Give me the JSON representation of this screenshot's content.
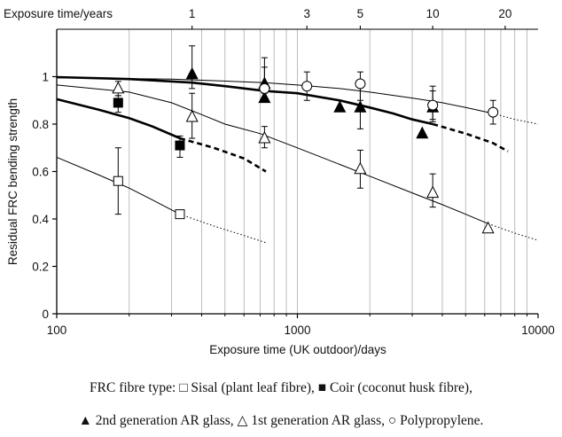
{
  "chart_data": {
    "type": "scatter",
    "title": "",
    "xlabel": "Exposure time (UK outdoor)/days",
    "ylabel": "Residual FRC bending strength",
    "top_axis_label": "Exposure time/years",
    "x_scale": "log",
    "xlim": [
      100,
      10000
    ],
    "ylim": [
      0,
      1.2
    ],
    "x_ticks": [
      100,
      1000,
      10000
    ],
    "x_tick_labels": [
      "100",
      "1000",
      "10000"
    ],
    "y_ticks": [
      0,
      0.2,
      0.4,
      0.6,
      0.8,
      1
    ],
    "y_tick_labels": [
      "0",
      "0.2",
      "0.4",
      "0.6",
      "0.8",
      "1"
    ],
    "top_ticks": [
      {
        "label": "1",
        "days": 365
      },
      {
        "label": "3",
        "days": 1095
      },
      {
        "label": "5",
        "days": 1825
      },
      {
        "label": "10",
        "days": 3650
      },
      {
        "label": "20",
        "days": 7300
      }
    ],
    "vertical_grid": true,
    "horizontal_grid": false,
    "series": [
      {
        "marker": "open-square",
        "points": [
          {
            "x": 180,
            "y": 0.56,
            "err": [
              0.42,
              0.7
            ]
          },
          {
            "x": 325,
            "y": 0.42
          }
        ],
        "trend_solid": [
          [
            100,
            0.66
          ],
          [
            150,
            0.585
          ],
          [
            200,
            0.53
          ],
          [
            250,
            0.48
          ],
          [
            325,
            0.42
          ]
        ],
        "trend_dotted": [
          [
            325,
            0.42
          ],
          [
            450,
            0.37
          ],
          [
            600,
            0.33
          ],
          [
            740,
            0.3
          ]
        ]
      },
      {
        "marker": "filled-square",
        "points": [
          {
            "x": 180,
            "y": 0.89,
            "err": [
              0.85,
              0.92
            ]
          },
          {
            "x": 325,
            "y": 0.71,
            "err": [
              0.66,
              0.75
            ]
          }
        ],
        "trend_solid": [
          [
            100,
            0.905
          ],
          [
            150,
            0.86
          ],
          [
            200,
            0.825
          ],
          [
            250,
            0.79
          ],
          [
            325,
            0.74
          ]
        ],
        "trend_dashed": [
          [
            325,
            0.74
          ],
          [
            450,
            0.7
          ],
          [
            600,
            0.655
          ],
          [
            740,
            0.6
          ]
        ]
      },
      {
        "marker": "open-triangle",
        "points": [
          {
            "x": 180,
            "y": 0.95,
            "err": [
              0.92,
              0.98
            ]
          },
          {
            "x": 365,
            "y": 0.83,
            "err": [
              0.74,
              0.93
            ]
          },
          {
            "x": 730,
            "y": 0.74,
            "err": [
              0.7,
              0.79
            ]
          },
          {
            "x": 1825,
            "y": 0.61,
            "err": [
              0.53,
              0.69
            ]
          },
          {
            "x": 3650,
            "y": 0.51,
            "err": [
              0.45,
              0.59
            ]
          },
          {
            "x": 6200,
            "y": 0.36
          }
        ],
        "trend_solid": [
          [
            100,
            0.965
          ],
          [
            200,
            0.935
          ],
          [
            300,
            0.89
          ],
          [
            400,
            0.84
          ],
          [
            500,
            0.8
          ],
          [
            700,
            0.76
          ],
          [
            1000,
            0.7
          ],
          [
            1500,
            0.63
          ],
          [
            2000,
            0.58
          ],
          [
            3000,
            0.51
          ],
          [
            4000,
            0.46
          ],
          [
            5000,
            0.42
          ],
          [
            6200,
            0.38
          ]
        ],
        "trend_dotted": [
          [
            6200,
            0.38
          ],
          [
            8000,
            0.34
          ],
          [
            10000,
            0.31
          ]
        ]
      },
      {
        "marker": "filled-triangle",
        "points": [
          {
            "x": 365,
            "y": 1.01,
            "err": [
              0.95,
              1.13
            ]
          },
          {
            "x": 730,
            "y": 0.97,
            "err": [
              0.93,
              1.08
            ]
          },
          {
            "x": 730,
            "y": 0.91
          },
          {
            "x": 1500,
            "y": 0.87
          },
          {
            "x": 1825,
            "y": 0.87,
            "err": [
              0.78,
              0.96
            ]
          },
          {
            "x": 3300,
            "y": 0.76
          },
          {
            "x": 3650,
            "y": 0.87,
            "err": [
              0.82,
              0.96
            ]
          }
        ],
        "trend_solid": [
          [
            100,
            0.998
          ],
          [
            200,
            0.99
          ],
          [
            365,
            0.975
          ],
          [
            500,
            0.96
          ],
          [
            730,
            0.94
          ],
          [
            1000,
            0.93
          ],
          [
            1500,
            0.9
          ],
          [
            2000,
            0.87
          ],
          [
            2500,
            0.845
          ],
          [
            3000,
            0.82
          ],
          [
            3650,
            0.8
          ]
        ],
        "trend_dashed": [
          [
            3650,
            0.8
          ],
          [
            5000,
            0.76
          ],
          [
            6500,
            0.72
          ],
          [
            7500,
            0.685
          ]
        ]
      },
      {
        "marker": "open-circle",
        "points": [
          {
            "x": 730,
            "y": 0.95,
            "err": [
              0.91,
              1.04
            ]
          },
          {
            "x": 1095,
            "y": 0.96,
            "err": [
              0.9,
              1.02
            ]
          },
          {
            "x": 1825,
            "y": 0.97,
            "err": [
              0.9,
              1.02
            ]
          },
          {
            "x": 3650,
            "y": 0.88,
            "err": [
              0.81,
              0.94
            ]
          },
          {
            "x": 6500,
            "y": 0.85,
            "err": [
              0.8,
              0.9
            ]
          }
        ],
        "trend_solid": [
          [
            100,
            0.995
          ],
          [
            300,
            0.99
          ],
          [
            730,
            0.975
          ],
          [
            1000,
            0.965
          ],
          [
            1500,
            0.95
          ],
          [
            2000,
            0.935
          ],
          [
            3000,
            0.91
          ],
          [
            4000,
            0.89
          ],
          [
            5000,
            0.87
          ],
          [
            6500,
            0.845
          ]
        ],
        "trend_dotted": [
          [
            6500,
            0.845
          ],
          [
            8000,
            0.82
          ],
          [
            10000,
            0.8
          ]
        ]
      }
    ]
  },
  "caption": {
    "line1": "FRC fibre type: □ Sisal (plant leaf fibre), ■ Coir (coconut husk fibre),",
    "line2": "▲ 2nd generation AR glass, △ 1st generation AR glass, ○ Polypropylene."
  }
}
